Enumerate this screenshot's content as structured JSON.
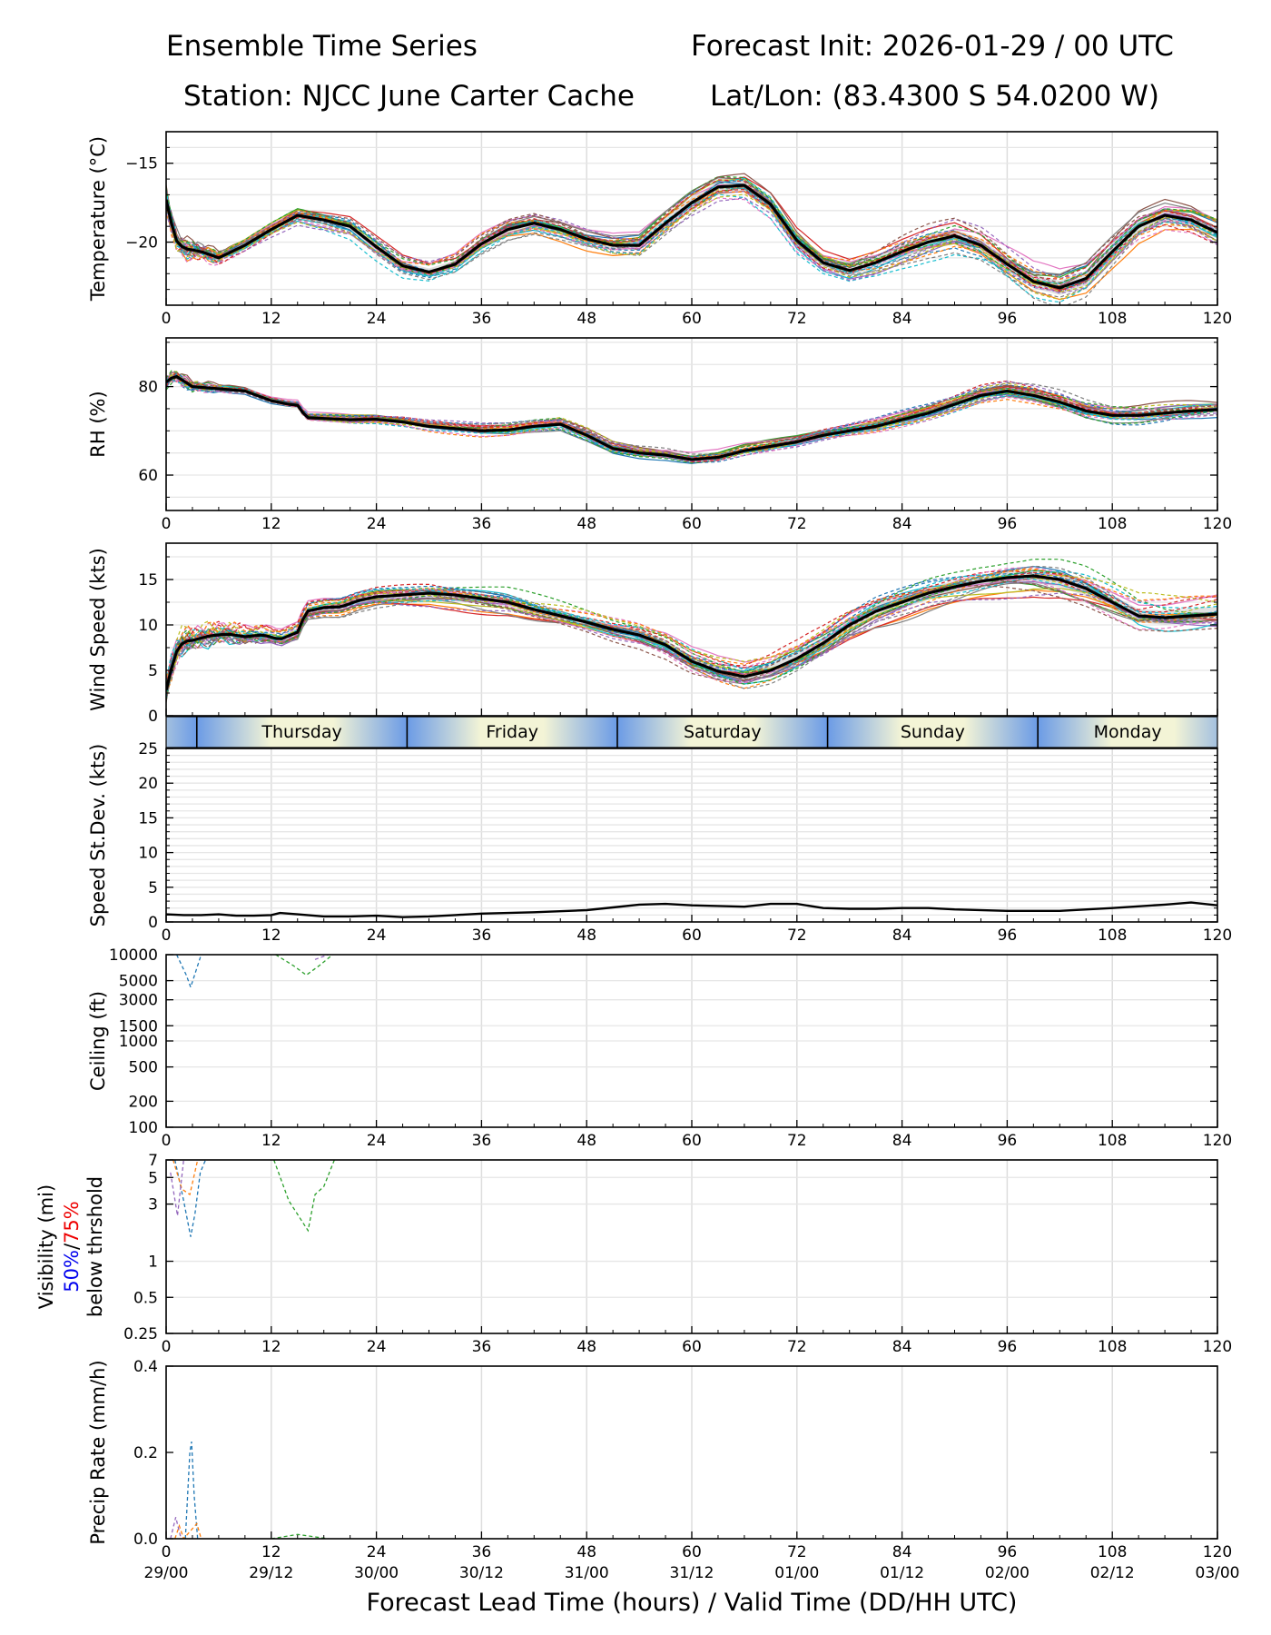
{
  "header": {
    "title": "Ensemble Time Series",
    "init": "Forecast Init: 2026-01-29 / 00 UTC",
    "station": "Station: NJCC June Carter Cache",
    "latlon": "Lat/Lon: (83.4300 S 54.0200 W)"
  },
  "x_axis": {
    "label": "Forecast Lead Time (hours) / Valid Time (DD/HH UTC)",
    "lead_ticks": [
      0,
      12,
      24,
      36,
      48,
      60,
      72,
      84,
      96,
      108,
      120
    ],
    "valid_labels": [
      "29/00",
      "29/12",
      "30/00",
      "30/12",
      "31/00",
      "31/12",
      "01/00",
      "01/12",
      "02/00",
      "02/12",
      "03/00"
    ],
    "range": [
      0,
      120
    ]
  },
  "day_band": {
    "days": [
      {
        "name": "Thursday",
        "start": 3.5,
        "end": 27.5
      },
      {
        "name": "Friday",
        "start": 27.5,
        "end": 51.5
      },
      {
        "name": "Saturday",
        "start": 51.5,
        "end": 75.5
      },
      {
        "name": "Sunday",
        "start": 75.5,
        "end": 99.5
      },
      {
        "name": "Monday",
        "start": 99.5,
        "end": 123.5
      }
    ],
    "night_color": "#6b9be6",
    "day_color": "#f3f4d6"
  },
  "member_colors": [
    "#1f77b4",
    "#ff7f0e",
    "#2ca02c",
    "#d62728",
    "#9467bd",
    "#8c564b",
    "#e377c2",
    "#7f7f7f",
    "#bcbd22",
    "#17becf"
  ],
  "chart_data": [
    {
      "id": "temperature",
      "type": "line",
      "ylabel": "Temperature (°C)",
      "ylim": [
        -24,
        -13
      ],
      "yticks": [
        -20,
        -15
      ],
      "ytick_labels": [
        "−20",
        "−15"
      ],
      "ygrid": [
        -23,
        -22,
        -21,
        -20,
        -19,
        -18,
        -17,
        -16,
        -15,
        -14
      ],
      "spread": 0.9,
      "noise_until": 8,
      "x": [
        0,
        1,
        2,
        4,
        6,
        9,
        12,
        15,
        18,
        21,
        24,
        27,
        30,
        33,
        36,
        39,
        42,
        45,
        48,
        51,
        54,
        57,
        60,
        63,
        66,
        69,
        72,
        75,
        78,
        81,
        84,
        87,
        90,
        93,
        96,
        99,
        102,
        105,
        108,
        111,
        114,
        117,
        120
      ],
      "mean": [
        -17.3,
        -19.8,
        -20.4,
        -20.6,
        -21.0,
        -20.2,
        -19.2,
        -18.3,
        -18.6,
        -19.0,
        -20.3,
        -21.5,
        -21.9,
        -21.4,
        -20.1,
        -19.2,
        -18.8,
        -19.2,
        -19.8,
        -20.2,
        -20.2,
        -18.8,
        -17.5,
        -16.5,
        -16.4,
        -17.6,
        -19.9,
        -21.3,
        -21.8,
        -21.3,
        -20.6,
        -20.0,
        -19.6,
        -20.2,
        -21.4,
        -22.5,
        -22.9,
        -22.3,
        -20.6,
        -19.0,
        -18.3,
        -18.6,
        -19.4
      ]
    },
    {
      "id": "rh",
      "type": "line",
      "ylabel": "RH (%)",
      "ylim": [
        52,
        91
      ],
      "yticks": [
        60,
        80
      ],
      "ytick_labels": [
        "60",
        "80"
      ],
      "ygrid": [
        55,
        60,
        65,
        70,
        75,
        80,
        85,
        90
      ],
      "spread": 1.8,
      "noise_until": 8,
      "x": [
        0,
        1,
        3,
        6,
        9,
        12,
        14,
        15,
        16,
        18,
        21,
        24,
        27,
        30,
        33,
        36,
        39,
        42,
        45,
        48,
        51,
        54,
        57,
        60,
        63,
        66,
        69,
        72,
        75,
        78,
        81,
        84,
        87,
        90,
        93,
        96,
        99,
        102,
        105,
        108,
        111,
        114,
        117,
        120
      ],
      "mean": [
        81.0,
        82.5,
        80.0,
        79.5,
        79.0,
        76.8,
        76.0,
        75.8,
        73.0,
        72.8,
        72.5,
        72.6,
        72.0,
        71.0,
        70.5,
        70.0,
        70.2,
        71.0,
        71.5,
        69.0,
        66.0,
        65.0,
        64.5,
        63.5,
        64.0,
        65.5,
        66.5,
        67.5,
        69.0,
        70.0,
        71.0,
        72.5,
        74.0,
        76.0,
        78.0,
        79.0,
        78.0,
        76.5,
        74.5,
        73.5,
        73.5,
        74.0,
        74.5,
        74.8
      ]
    },
    {
      "id": "wind",
      "type": "line",
      "ylabel": "Wind Speed (kts)",
      "ylim": [
        0,
        19
      ],
      "yticks": [
        0,
        5,
        10,
        15
      ],
      "ytick_labels": [
        "0",
        "5",
        "10",
        "15"
      ],
      "ygrid": [
        2.5,
        5,
        7.5,
        10,
        12.5,
        15,
        17.5
      ],
      "spread": 1.7,
      "noise_until": 14,
      "x": [
        0,
        1,
        2,
        3,
        5,
        7,
        9,
        11,
        13,
        15,
        16,
        18,
        20,
        22,
        24,
        27,
        30,
        33,
        36,
        39,
        42,
        45,
        48,
        51,
        54,
        57,
        60,
        63,
        66,
        69,
        72,
        75,
        78,
        81,
        84,
        87,
        90,
        93,
        96,
        99,
        102,
        105,
        108,
        111,
        114,
        117,
        120
      ],
      "mean": [
        2.8,
        6.8,
        8.2,
        8.3,
        8.8,
        9.0,
        8.7,
        8.9,
        8.4,
        9.2,
        11.5,
        11.9,
        12.0,
        12.7,
        13.1,
        13.3,
        13.5,
        13.3,
        12.9,
        12.5,
        11.7,
        11.0,
        10.3,
        9.5,
        8.9,
        7.8,
        6.0,
        4.9,
        4.3,
        5.0,
        6.3,
        8.0,
        10.0,
        11.5,
        12.5,
        13.5,
        14.2,
        14.8,
        15.2,
        15.4,
        15.0,
        14.0,
        12.5,
        11.0,
        10.8,
        11.0,
        11.2
      ]
    },
    {
      "id": "speed_stdev",
      "type": "line",
      "ylabel": "Speed St.Dev. (kts)",
      "ylim": [
        0,
        25
      ],
      "yticks": [
        0,
        5,
        10,
        15,
        20,
        25
      ],
      "ytick_labels": [
        "0",
        "5",
        "10",
        "15",
        "20",
        "25"
      ],
      "ygrid": [
        1,
        2,
        3,
        4,
        5,
        6,
        7,
        8,
        9,
        10,
        11,
        12,
        13,
        14,
        15,
        16,
        17,
        18,
        19,
        20,
        21,
        22,
        23,
        24
      ],
      "x": [
        0,
        2,
        4,
        6,
        8,
        10,
        12,
        13,
        15,
        18,
        21,
        24,
        27,
        30,
        33,
        36,
        42,
        48,
        51,
        54,
        57,
        60,
        66,
        69,
        72,
        75,
        78,
        81,
        84,
        87,
        90,
        96,
        102,
        108,
        114,
        117,
        120
      ],
      "mean": [
        1.1,
        1.0,
        1.0,
        1.1,
        0.9,
        0.9,
        1.0,
        1.3,
        1.1,
        0.8,
        0.8,
        0.9,
        0.7,
        0.8,
        1.0,
        1.2,
        1.4,
        1.7,
        2.1,
        2.5,
        2.6,
        2.4,
        2.2,
        2.6,
        2.6,
        2.0,
        1.9,
        1.9,
        2.0,
        2.0,
        1.8,
        1.6,
        1.6,
        2.0,
        2.5,
        2.8,
        2.4
      ]
    },
    {
      "id": "ceiling",
      "type": "line",
      "scale": "log",
      "ylabel": "Ceiling (ft)",
      "ylim": [
        100,
        10000
      ],
      "yticks": [
        100,
        200,
        500,
        1000,
        1500,
        3000,
        5000,
        10000
      ],
      "ytick_labels": [
        "100",
        "200",
        "500",
        "1000",
        "1500",
        "3000",
        "5000",
        "10000"
      ],
      "ygrid": [
        200,
        500,
        1000,
        1500,
        3000,
        5000
      ],
      "members": [
        {
          "color_index": 0,
          "x": [
            1.2,
            2.3,
            2.8,
            3.3,
            4.0
          ],
          "values": [
            10000,
            5800,
            4200,
            6000,
            10000
          ]
        },
        {
          "color_index": 2,
          "x": [
            12.5,
            14.5,
            16.0,
            17.5,
            19.0
          ],
          "values": [
            10000,
            7500,
            5800,
            7500,
            10000
          ]
        },
        {
          "color_index": 4,
          "x": [
            17.0,
            18.5
          ],
          "values": [
            8800,
            10000
          ]
        }
      ]
    },
    {
      "id": "visibility",
      "type": "line",
      "scale": "log",
      "ylabel_parts": [
        "Visibility (mi)",
        "50%",
        "/",
        "75%",
        "below thrshold"
      ],
      "ylim": [
        0.25,
        7
      ],
      "yticks": [
        0.25,
        0.5,
        1,
        3,
        5,
        7
      ],
      "ytick_labels": [
        "0.25",
        "0.5",
        "1",
        "3",
        "5",
        "7"
      ],
      "ygrid": [
        0.5,
        1,
        3,
        5
      ],
      "members": [
        {
          "color_index": 0,
          "x": [
            1.0,
            2.0,
            2.8,
            3.3,
            3.9,
            4.5
          ],
          "values": [
            7,
            3.2,
            1.6,
            2.5,
            5.5,
            7
          ]
        },
        {
          "color_index": 1,
          "x": [
            0.8,
            1.8,
            2.7,
            3.6
          ],
          "values": [
            7,
            4.0,
            3.6,
            7
          ]
        },
        {
          "color_index": 4,
          "x": [
            0.5,
            1.3,
            2.0
          ],
          "values": [
            5.5,
            2.4,
            7
          ]
        },
        {
          "color_index": 2,
          "x": [
            12.3,
            14.0,
            16.2,
            17.0,
            18.0,
            19.2
          ],
          "values": [
            7,
            3.2,
            1.8,
            3.6,
            4.2,
            7
          ]
        }
      ]
    },
    {
      "id": "precip",
      "type": "line",
      "ylabel": "Precip Rate (mm/h)",
      "ylim": [
        0,
        0.4
      ],
      "yticks": [
        0.0,
        0.2,
        0.4
      ],
      "ytick_labels": [
        "0.0",
        "0.2",
        "0.4"
      ],
      "ygrid": [],
      "members": [
        {
          "color_index": 0,
          "x": [
            2.2,
            2.7,
            2.9,
            3.2,
            3.6
          ],
          "values": [
            0.0,
            0.2,
            0.225,
            0.1,
            0.0
          ]
        },
        {
          "color_index": 1,
          "x": [
            1.0,
            1.5,
            2.0,
            3.5,
            4.0
          ],
          "values": [
            0.0,
            0.03,
            0.0,
            0.035,
            0.0
          ]
        },
        {
          "color_index": 4,
          "x": [
            0.5,
            1.1,
            1.7
          ],
          "values": [
            0.0,
            0.05,
            0.0
          ]
        },
        {
          "color_index": 2,
          "x": [
            12.0,
            15.0,
            18.5
          ],
          "values": [
            0.0,
            0.01,
            0.0
          ]
        }
      ]
    }
  ]
}
